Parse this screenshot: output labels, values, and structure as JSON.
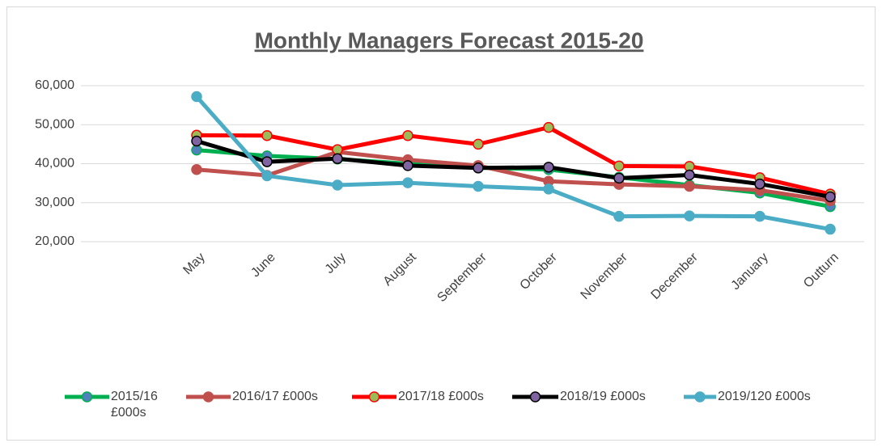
{
  "chart_data": {
    "type": "line",
    "title": "Monthly Managers Forecast 2015-20",
    "categories": [
      "May",
      "June",
      "July",
      "August",
      "September",
      "October",
      "November",
      "December",
      "January",
      "Outturn"
    ],
    "ylim": [
      20000,
      60000
    ],
    "yticks": [
      {
        "value": 20000,
        "label": "20,000"
      },
      {
        "value": 30000,
        "label": "30,000"
      },
      {
        "value": 40000,
        "label": "40,000"
      },
      {
        "value": 50000,
        "label": "50,000"
      },
      {
        "value": 60000,
        "label": "60,000"
      }
    ],
    "grid": true,
    "legend": "bottom",
    "series": [
      {
        "name": "2015/16 £000s",
        "color": "#00b050",
        "marker_color": "#4f81bd",
        "values": [
          43500,
          42000,
          41200,
          40000,
          39000,
          38500,
          36500,
          34500,
          32500,
          29000
        ]
      },
      {
        "name": "2016/17 £000s",
        "color": "#c0504d",
        "marker_color": "#c0504d",
        "values": [
          38500,
          37000,
          43000,
          41000,
          39500,
          35500,
          34700,
          34200,
          33200,
          30500
        ]
      },
      {
        "name": "2017/18 £000s",
        "color": "#ff0000",
        "marker_color": "#9bbb59",
        "values": [
          47300,
          47200,
          43600,
          47200,
          45000,
          49300,
          39400,
          39300,
          36400,
          32200
        ]
      },
      {
        "name": "2018/19 £000s",
        "color": "#000000",
        "marker_color": "#8064a2",
        "values": [
          45800,
          40500,
          41300,
          39500,
          38900,
          39100,
          36300,
          37100,
          34800,
          31500
        ]
      },
      {
        "name": "2019/120 £000s",
        "color": "#4bacc6",
        "marker_color": "#4bacc6",
        "values": [
          57200,
          36900,
          34500,
          35100,
          34200,
          33500,
          26500,
          26600,
          26500,
          23200
        ]
      }
    ]
  }
}
